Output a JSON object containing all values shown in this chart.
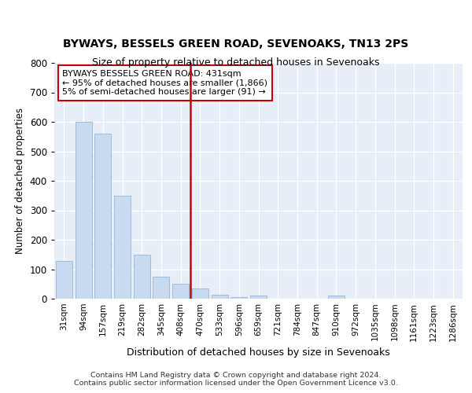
{
  "title1": "BYWAYS, BESSELS GREEN ROAD, SEVENOAKS, TN13 2PS",
  "title2": "Size of property relative to detached houses in Sevenoaks",
  "xlabel": "Distribution of detached houses by size in Sevenoaks",
  "ylabel": "Number of detached properties",
  "categories": [
    "31sqm",
    "94sqm",
    "157sqm",
    "219sqm",
    "282sqm",
    "345sqm",
    "408sqm",
    "470sqm",
    "533sqm",
    "596sqm",
    "659sqm",
    "721sqm",
    "784sqm",
    "847sqm",
    "910sqm",
    "972sqm",
    "1035sqm",
    "1098sqm",
    "1161sqm",
    "1223sqm",
    "1286sqm"
  ],
  "values": [
    128,
    600,
    560,
    350,
    150,
    75,
    50,
    35,
    13,
    5,
    10,
    0,
    0,
    0,
    10,
    0,
    0,
    0,
    0,
    0,
    0
  ],
  "bar_color": "#c8daf0",
  "bar_edge_color": "#a0bcd8",
  "vline_x": 6.5,
  "vline_color": "#cc0000",
  "annotation_text": "BYWAYS BESSELS GREEN ROAD: 431sqm\n← 95% of detached houses are smaller (1,866)\n5% of semi-detached houses are larger (91) →",
  "annotation_box_color": "#ffffff",
  "annotation_box_edge": "#cc0000",
  "footer": "Contains HM Land Registry data © Crown copyright and database right 2024.\nContains public sector information licensed under the Open Government Licence v3.0.",
  "ylim": [
    0,
    800
  ],
  "yticks": [
    0,
    100,
    200,
    300,
    400,
    500,
    600,
    700,
    800
  ],
  "background_color": "#ffffff",
  "plot_bg_color": "#e8eef8"
}
